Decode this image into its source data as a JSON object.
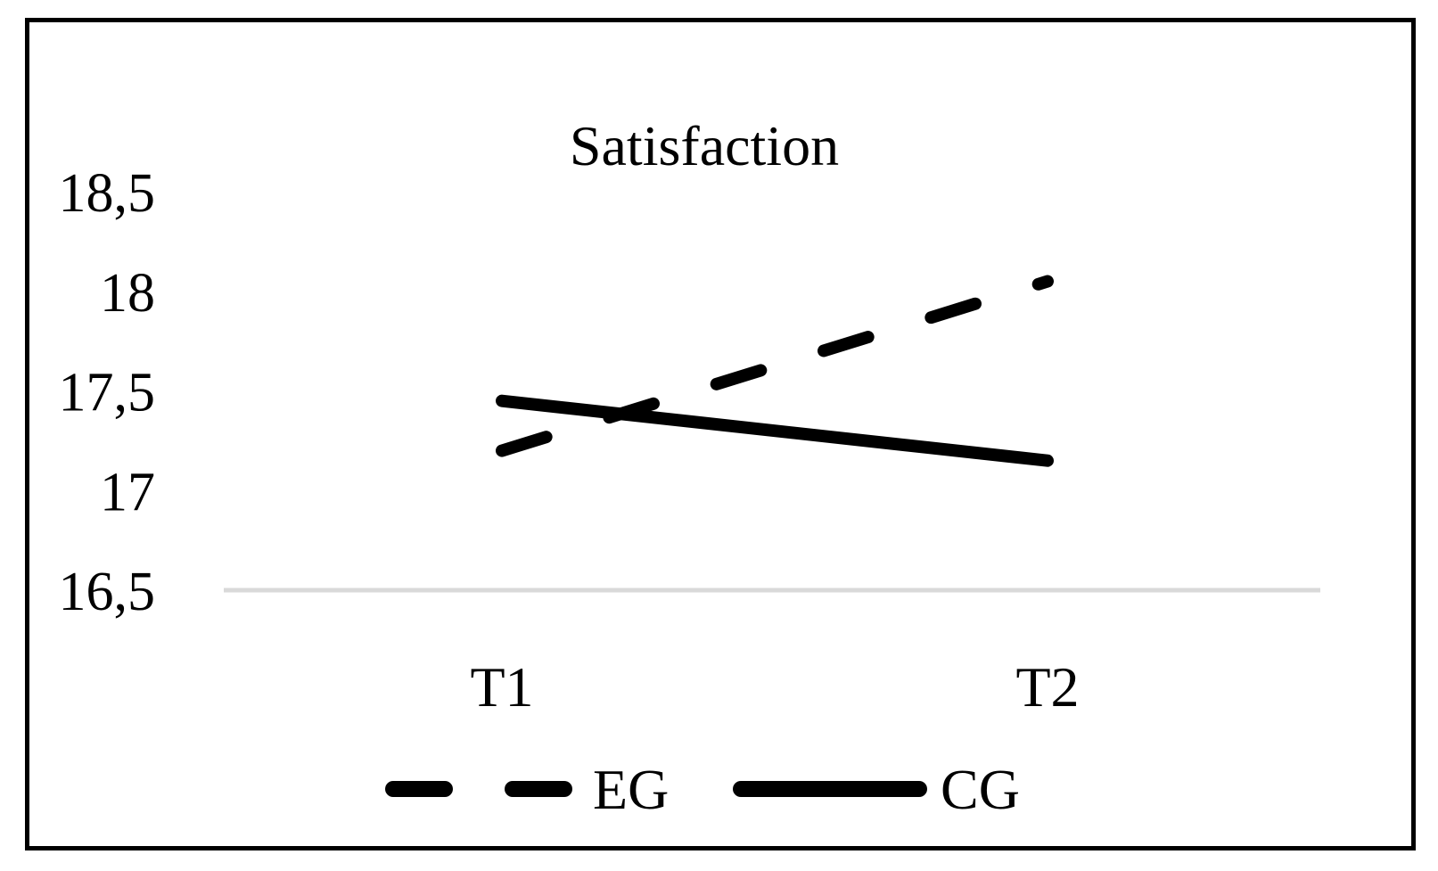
{
  "chart_data": {
    "type": "line",
    "title": "Satisfaction",
    "xlabel": "",
    "ylabel": "",
    "categories": [
      "T1",
      "T2"
    ],
    "y_ticks": [
      "16,5",
      "17",
      "17,5",
      "18",
      "18,5"
    ],
    "y_tick_values": [
      16.5,
      17,
      17.5,
      18,
      18.5
    ],
    "ylim": [
      16.5,
      18.5
    ],
    "grid": false,
    "legend_position": "bottom",
    "series": [
      {
        "name": "EG",
        "values": [
          17.2,
          18.05
        ],
        "style": "dashed",
        "color": "#000000"
      },
      {
        "name": "CG",
        "values": [
          17.45,
          17.15
        ],
        "style": "solid",
        "color": "#000000"
      }
    ],
    "baseline_color": "#d9d9d9"
  }
}
